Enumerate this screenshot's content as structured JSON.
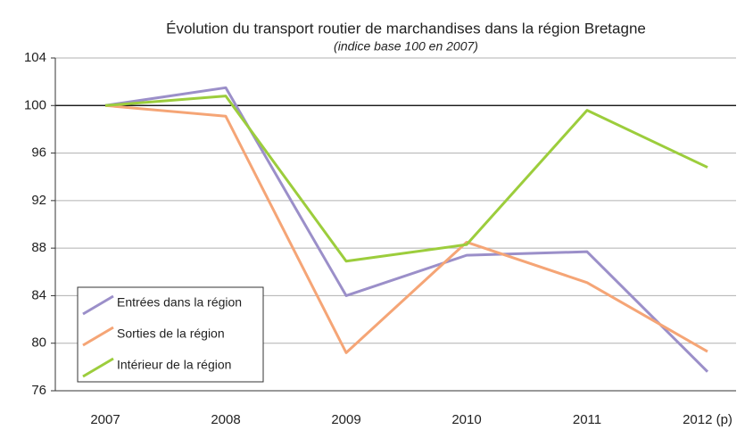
{
  "chart_data": {
    "type": "line",
    "title": "Évolution du transport routier de marchandises dans la région Bretagne",
    "subtitle": "(indice base 100 en 2007)",
    "categories": [
      "2007",
      "2008",
      "2009",
      "2010",
      "2011",
      "2012 (p)"
    ],
    "series": [
      {
        "name": "Entrées dans la région",
        "color": "#9b8fc9",
        "values": [
          100,
          101.5,
          84.0,
          87.4,
          87.7,
          77.6
        ]
      },
      {
        "name": "Sorties de la région",
        "color": "#f5a576",
        "values": [
          100,
          99.1,
          79.2,
          88.5,
          85.1,
          79.3
        ]
      },
      {
        "name": "Intérieur de la région",
        "color": "#9ccd3c",
        "values": [
          100,
          100.8,
          86.9,
          88.3,
          99.6,
          94.8
        ]
      }
    ],
    "ylim": [
      76,
      104
    ],
    "yticks": [
      76,
      80,
      84,
      88,
      92,
      96,
      100,
      104
    ],
    "reference_line": 100,
    "grid": true,
    "legend": "lower left"
  }
}
